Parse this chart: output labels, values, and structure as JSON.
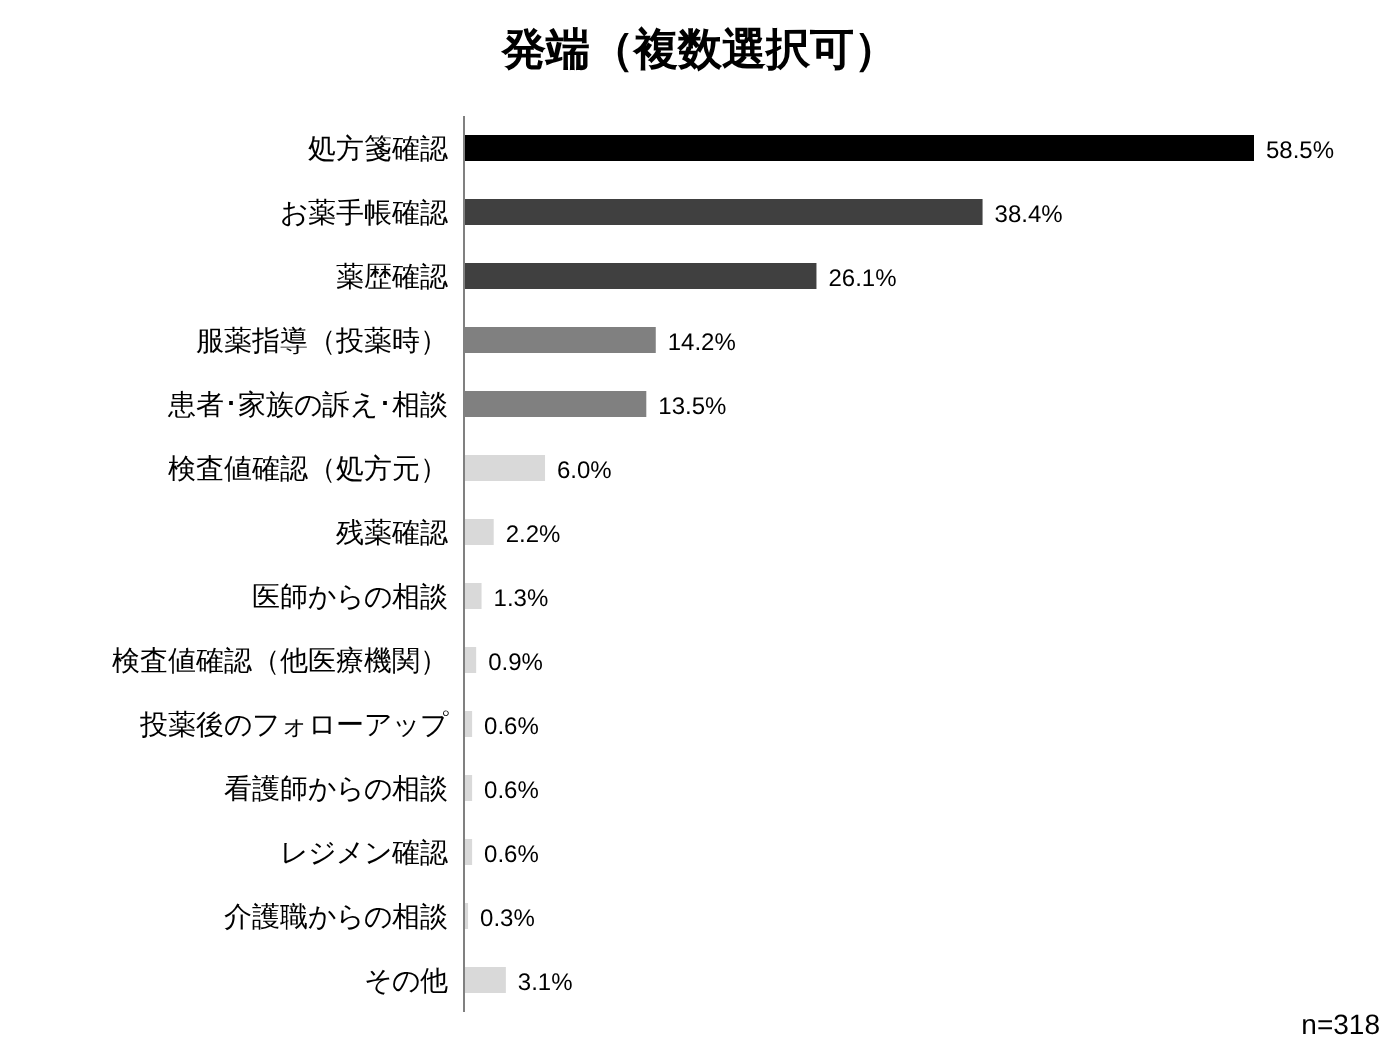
{
  "chart_data": {
    "type": "bar",
    "orientation": "horizontal",
    "title": "発端（複数選択可）",
    "categories": [
      "処方箋確認",
      "お薬手帳確認",
      "薬歴確認",
      "服薬指導（投薬時）",
      "患者･家族の訴え･相談",
      "検査値確認（処方元）",
      "残薬確認",
      "医師からの相談",
      "検査値確認（他医療機関）",
      "投薬後のフォローアップ",
      "看護師からの相談",
      "レジメン確認",
      "介護職からの相談",
      "その他"
    ],
    "values": [
      58.5,
      38.4,
      26.1,
      14.2,
      13.5,
      6.0,
      2.2,
      1.3,
      0.9,
      0.6,
      0.6,
      0.6,
      0.3,
      3.1
    ],
    "value_labels": [
      "58.5%",
      "38.4%",
      "26.1%",
      "14.2%",
      "13.5%",
      "6.0%",
      "2.2%",
      "1.3%",
      "0.9%",
      "0.6%",
      "0.6%",
      "0.6%",
      "0.3%",
      "3.1%"
    ],
    "colors": [
      "#000000",
      "#404040",
      "#404040",
      "#808080",
      "#808080",
      "#d9d9d9",
      "#d9d9d9",
      "#d9d9d9",
      "#d9d9d9",
      "#d9d9d9",
      "#d9d9d9",
      "#d9d9d9",
      "#d9d9d9",
      "#d9d9d9"
    ],
    "annotations": [
      "n=318"
    ]
  }
}
